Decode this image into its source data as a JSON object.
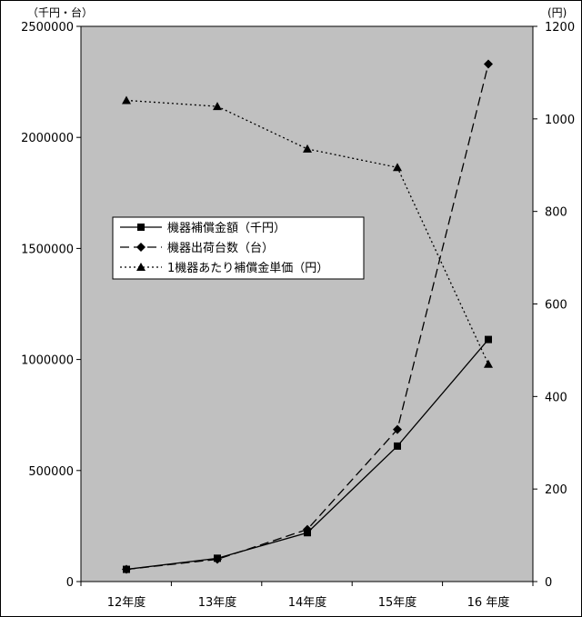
{
  "chart_data": {
    "type": "line",
    "categories": [
      "12年度",
      "13年度",
      "14年度",
      "15年度",
      "16 年度"
    ],
    "y_left": {
      "unit_label": "（千円・台）",
      "ylim": [
        0,
        2500000
      ],
      "ticks": [
        "0",
        "500000",
        "1000000",
        "1500000",
        "2000000",
        "2500000"
      ]
    },
    "y_right": {
      "unit_label": "(円)",
      "ylim": [
        0,
        1200
      ],
      "ticks": [
        "0",
        "200",
        "400",
        "600",
        "800",
        "1000",
        "1200"
      ]
    },
    "series": [
      {
        "name": "機器補償金額（千円）",
        "axis": "left",
        "style": "solid",
        "marker": "square",
        "values": [
          55000,
          105000,
          220000,
          610000,
          1090000
        ]
      },
      {
        "name": "機器出荷台数（台）",
        "axis": "left",
        "style": "dashed",
        "marker": "diamond",
        "values": [
          55000,
          100000,
          235000,
          685000,
          2330000
        ]
      },
      {
        "name": "1機器あたり補償金単価（円）",
        "axis": "right",
        "style": "dotted",
        "marker": "triangle",
        "values": [
          1040,
          1027,
          935,
          895,
          470
        ]
      }
    ],
    "plot_background": "#c0c0c0",
    "legend_position": "upper-left-inside",
    "grid": false
  }
}
